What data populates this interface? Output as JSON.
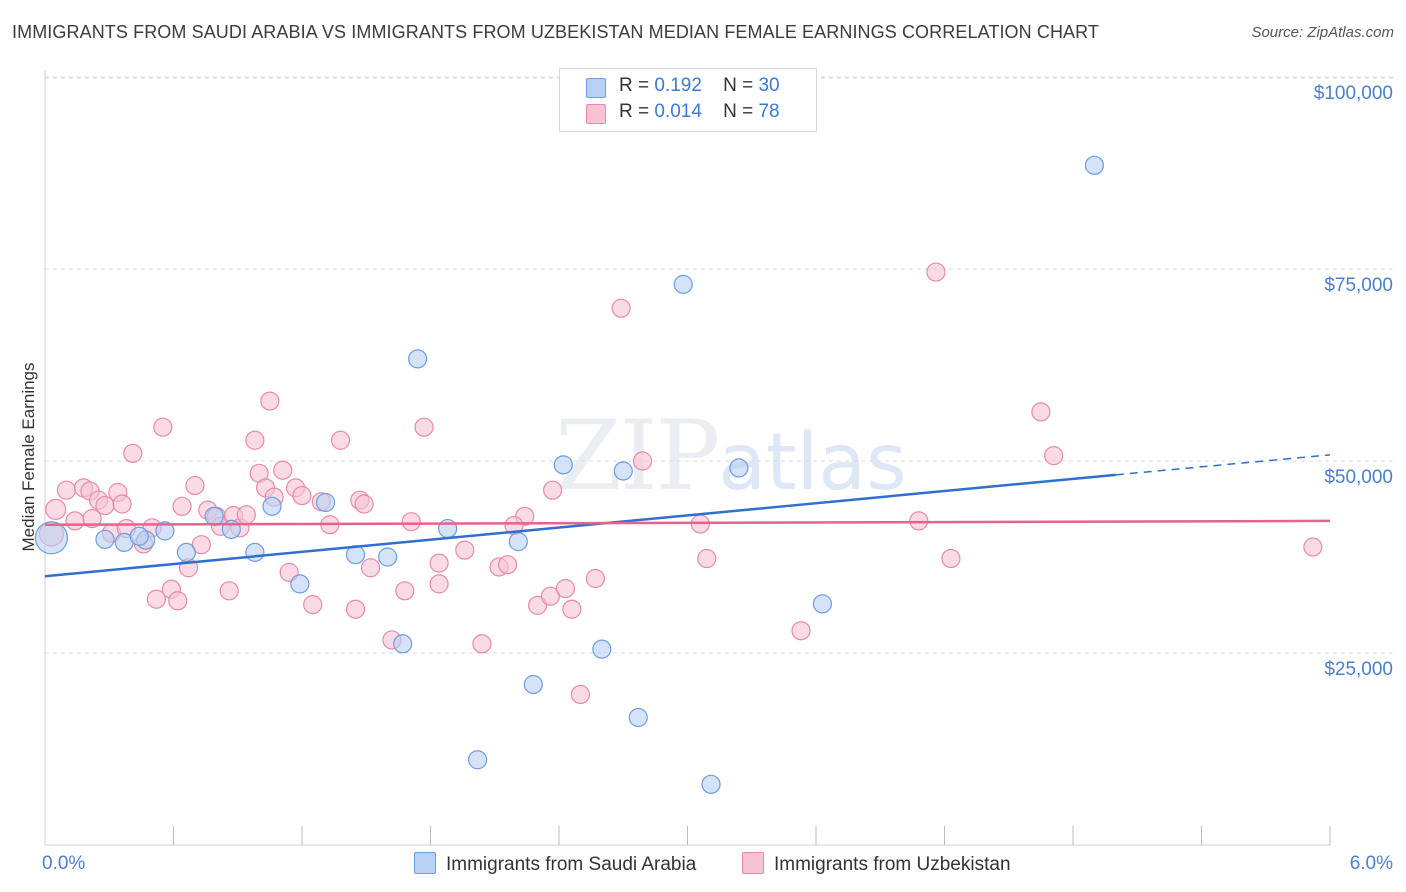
{
  "title": "IMMIGRANTS FROM SAUDI ARABIA VS IMMIGRANTS FROM UZBEKISTAN MEDIAN FEMALE EARNINGS CORRELATION CHART",
  "source": "Source: ZipAtlas.com",
  "watermark": {
    "zip": "ZIP",
    "atlas": "atlas"
  },
  "colors": {
    "blue_fill": "#b8d0f3",
    "blue_stroke": "#6f9be0",
    "blue_line": "#2f6fd0",
    "pink_fill": "#f7c3d4",
    "pink_stroke": "#e889a9",
    "pink_line": "#e8628f",
    "axis_text": "#4a7fd0",
    "grid": "#dcdcdc"
  },
  "legend": {
    "rows": [
      {
        "r_label": "R =",
        "r_value": "0.192",
        "n_label": "N =",
        "n_value": "30"
      },
      {
        "r_label": "R =",
        "r_value": "0.014",
        "n_label": "N =",
        "n_value": "78"
      }
    ]
  },
  "bottom_legend": {
    "series1": "Immigrants from Saudi Arabia",
    "series2": "Immigrants from Uzbekistan"
  },
  "chart_data": {
    "type": "scatter",
    "title": "IMMIGRANTS FROM SAUDI ARABIA VS IMMIGRANTS FROM UZBEKISTAN MEDIAN FEMALE EARNINGS CORRELATION CHART",
    "xlabel": "",
    "ylabel": "Median Female Earnings",
    "xlim": [
      0,
      6
    ],
    "ylim": [
      0,
      105000
    ],
    "x_tick_labels": [
      {
        "value": 0,
        "label": "0.0%"
      },
      {
        "value": 6,
        "label": "6.0%"
      }
    ],
    "y_ticks": [
      {
        "value": 25000,
        "label": "$25,000"
      },
      {
        "value": 50000,
        "label": "$50,000"
      },
      {
        "value": 75000,
        "label": "$75,000"
      },
      {
        "value": 100000,
        "label": "$100,000"
      }
    ],
    "series": [
      {
        "name": "Immigrants from Saudi Arabia",
        "color": "blue",
        "trend": {
          "x": [
            0.0,
            5.0
          ],
          "y": [
            35000,
            48200
          ],
          "dashed_to": [
            6.0,
            50800
          ]
        },
        "points": [
          [
            0.03,
            40000,
            16
          ],
          [
            0.28,
            39800,
            9
          ],
          [
            0.37,
            39400,
            9
          ],
          [
            0.47,
            39700,
            9
          ],
          [
            0.56,
            40900,
            9
          ],
          [
            0.66,
            38100,
            9
          ],
          [
            0.79,
            42800,
            9
          ],
          [
            0.87,
            41100,
            9
          ],
          [
            0.98,
            38100,
            9
          ],
          [
            1.06,
            44100,
            9
          ],
          [
            1.19,
            34000,
            9
          ],
          [
            1.31,
            44600,
            9
          ],
          [
            1.45,
            37800,
            9
          ],
          [
            1.6,
            37500,
            9
          ],
          [
            1.67,
            26200,
            9
          ],
          [
            1.74,
            63300,
            9
          ],
          [
            1.88,
            41200,
            9
          ],
          [
            2.02,
            11100,
            9
          ],
          [
            2.21,
            39500,
            9
          ],
          [
            2.28,
            20900,
            9
          ],
          [
            2.42,
            49500,
            9
          ],
          [
            2.6,
            25500,
            9
          ],
          [
            2.7,
            48700,
            9
          ],
          [
            2.77,
            16600,
            9
          ],
          [
            2.98,
            73000,
            9
          ],
          [
            3.11,
            7900,
            9
          ],
          [
            3.24,
            49100,
            9
          ],
          [
            3.63,
            31400,
            9
          ],
          [
            4.9,
            88500,
            9
          ],
          [
            0.44,
            40200,
            9
          ]
        ]
      },
      {
        "name": "Immigrants from Uzbekistan",
        "color": "pink",
        "trend": {
          "x": [
            0.0,
            6.0
          ],
          "y": [
            41700,
            42200
          ]
        },
        "points": [
          [
            0.03,
            40500,
            12
          ],
          [
            0.05,
            43700,
            10
          ],
          [
            0.1,
            46200,
            9
          ],
          [
            0.14,
            42200,
            9
          ],
          [
            0.18,
            46500,
            9
          ],
          [
            0.21,
            46100,
            9
          ],
          [
            0.22,
            42500,
            9
          ],
          [
            0.25,
            44900,
            9
          ],
          [
            0.28,
            44200,
            9
          ],
          [
            0.31,
            40600,
            9
          ],
          [
            0.34,
            45900,
            9
          ],
          [
            0.36,
            44400,
            9
          ],
          [
            0.38,
            41200,
            9
          ],
          [
            0.41,
            51000,
            9
          ],
          [
            0.46,
            39200,
            9
          ],
          [
            0.5,
            41300,
            9
          ],
          [
            0.52,
            32000,
            9
          ],
          [
            0.55,
            54400,
            9
          ],
          [
            0.59,
            33300,
            9
          ],
          [
            0.62,
            31800,
            9
          ],
          [
            0.64,
            44100,
            9
          ],
          [
            0.67,
            36100,
            9
          ],
          [
            0.7,
            46800,
            9
          ],
          [
            0.73,
            39100,
            9
          ],
          [
            0.76,
            43600,
            9
          ],
          [
            0.8,
            42800,
            9
          ],
          [
            0.82,
            41500,
            9
          ],
          [
            0.86,
            33100,
            9
          ],
          [
            0.88,
            42900,
            9
          ],
          [
            0.91,
            41300,
            9
          ],
          [
            0.94,
            43000,
            9
          ],
          [
            0.98,
            52700,
            9
          ],
          [
            1.0,
            48400,
            9
          ],
          [
            1.03,
            46500,
            9
          ],
          [
            1.05,
            57800,
            9
          ],
          [
            1.07,
            45300,
            9
          ],
          [
            1.11,
            48800,
            9
          ],
          [
            1.14,
            35500,
            9
          ],
          [
            1.17,
            46500,
            9
          ],
          [
            1.2,
            45500,
            9
          ],
          [
            1.25,
            31300,
            9
          ],
          [
            1.29,
            44700,
            9
          ],
          [
            1.33,
            41700,
            9
          ],
          [
            1.38,
            52700,
            9
          ],
          [
            1.45,
            30700,
            9
          ],
          [
            1.47,
            44900,
            9
          ],
          [
            1.49,
            44400,
            9
          ],
          [
            1.52,
            36100,
            9
          ],
          [
            1.62,
            26700,
            9
          ],
          [
            1.68,
            33100,
            9
          ],
          [
            1.71,
            42100,
            9
          ],
          [
            1.77,
            54400,
            9
          ],
          [
            1.84,
            36700,
            9
          ],
          [
            1.84,
            34000,
            9
          ],
          [
            1.96,
            38400,
            9
          ],
          [
            2.04,
            26200,
            9
          ],
          [
            2.12,
            36200,
            9
          ],
          [
            2.16,
            36500,
            9
          ],
          [
            2.24,
            42800,
            9
          ],
          [
            2.3,
            31200,
            9
          ],
          [
            2.36,
            32400,
            9
          ],
          [
            2.37,
            46200,
            9
          ],
          [
            2.43,
            33400,
            9
          ],
          [
            2.46,
            30700,
            9
          ],
          [
            2.5,
            19600,
            9
          ],
          [
            2.57,
            34700,
            9
          ],
          [
            2.69,
            69900,
            9
          ],
          [
            2.79,
            50000,
            9
          ],
          [
            3.06,
            41800,
            9
          ],
          [
            3.09,
            37300,
            9
          ],
          [
            3.53,
            27900,
            9
          ],
          [
            4.08,
            42200,
            9
          ],
          [
            4.16,
            74600,
            9
          ],
          [
            4.23,
            37300,
            9
          ],
          [
            4.65,
            56400,
            9
          ],
          [
            4.71,
            50700,
            9
          ],
          [
            5.92,
            38800,
            9
          ],
          [
            2.19,
            41600,
            9
          ]
        ]
      }
    ]
  }
}
